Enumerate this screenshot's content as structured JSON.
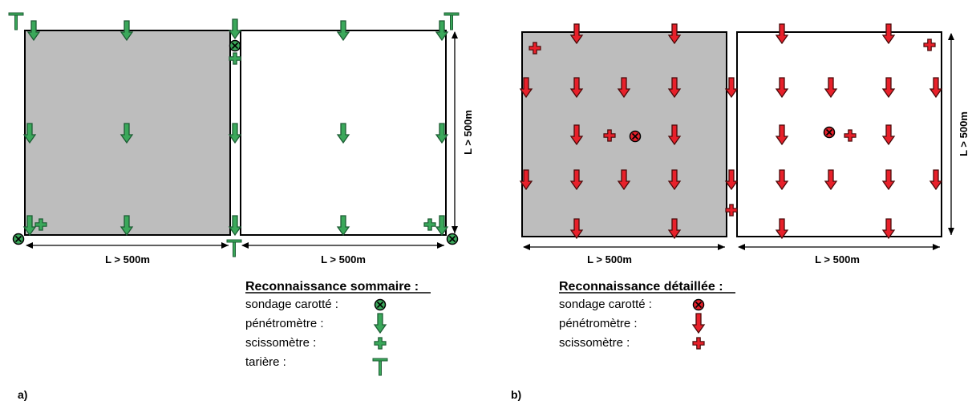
{
  "colors": {
    "green_fill": "#3aa85a",
    "green_stroke": "#1d5c34",
    "red_fill": "#e8202a",
    "red_stroke": "#4a0a0a",
    "grey_plot": "#bdbdbd"
  },
  "icons": {
    "core": "core-drill-icon",
    "penetrometer": "penetrometer-arrow-icon",
    "vane": "vane-test-cross-icon",
    "auger": "auger-icon"
  },
  "panel_a": {
    "label": "a)",
    "dim_bottom_left": "L > 500m",
    "dim_bottom_right": "L > 500m",
    "dim_right": "L > 500m",
    "legend": {
      "title": "Reconnaissance sommaire :",
      "items": [
        {
          "label": "sondage carotté :",
          "icon": "core"
        },
        {
          "label": "pénétromètre :",
          "icon": "penetrometer"
        },
        {
          "label": "scissomètre :",
          "icon": "vane"
        },
        {
          "label": "tarière :",
          "icon": "auger"
        }
      ]
    }
  },
  "panel_b": {
    "label": "b)",
    "dim_bottom_left": "L > 500m",
    "dim_bottom_right": "L > 500m",
    "dim_right": "L > 500m",
    "legend": {
      "title": "Reconnaissance détaillée :",
      "items": [
        {
          "label": "sondage carotté :",
          "icon": "core"
        },
        {
          "label": "pénétromètre :",
          "icon": "penetrometer"
        },
        {
          "label": "scissomètre :",
          "icon": "vane"
        }
      ]
    }
  }
}
